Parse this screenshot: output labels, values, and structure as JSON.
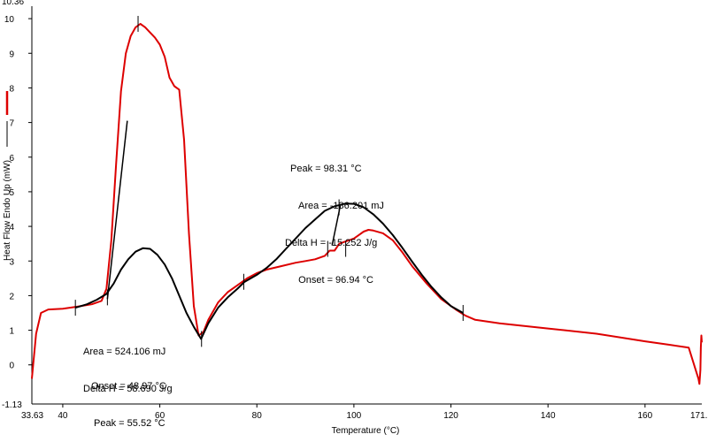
{
  "chart_data": {
    "type": "line",
    "xlabel": "Temperature (°C)",
    "ylabel": "Heat Flow Endo Up (mW)",
    "xlim": [
      33.63,
      171.7
    ],
    "ylim": [
      -1.13,
      10.36
    ],
    "x_ticks": [
      40,
      60,
      80,
      100,
      120,
      140,
      160
    ],
    "x_tick_labels": [
      "40",
      "60",
      "80",
      "100",
      "120",
      "140",
      "160"
    ],
    "x_min_label": "33.63",
    "x_max_label": "171.7",
    "y_ticks": [
      0,
      1,
      2,
      3,
      4,
      5,
      6,
      7,
      8,
      9,
      10
    ],
    "y_tick_labels": [
      "0",
      "1",
      "2",
      "3",
      "4",
      "5",
      "6",
      "7",
      "8",
      "9",
      "10"
    ],
    "y_min_label": "-1.13",
    "y_max_label": "10.36",
    "grid": false,
    "legend": [
      {
        "color": "#dd0000"
      },
      {
        "color": "#000000"
      }
    ],
    "series": [
      {
        "color": "#dd0000",
        "x": [
          33.63,
          34.5,
          35.5,
          37,
          40,
          43,
          46,
          48,
          49,
          50,
          51,
          52,
          53,
          54,
          55,
          56,
          57,
          58,
          59,
          60,
          61,
          62,
          63,
          64,
          65,
          66,
          67,
          68,
          69,
          70,
          72,
          74,
          76,
          78,
          80,
          82,
          85,
          88,
          90,
          92,
          94,
          95,
          96,
          97,
          98,
          99,
          100,
          101,
          102,
          103,
          104,
          106,
          108,
          110,
          112,
          115,
          118,
          121,
          123,
          125,
          130,
          140,
          150,
          160,
          165,
          169,
          171,
          171.2,
          171.4,
          171.5,
          171.6,
          171.7
        ],
        "y": [
          -0.4,
          0.9,
          1.5,
          1.6,
          1.62,
          1.68,
          1.75,
          1.85,
          2.2,
          3.6,
          5.8,
          7.9,
          9.0,
          9.5,
          9.75,
          9.85,
          9.75,
          9.6,
          9.45,
          9.25,
          8.9,
          8.3,
          8.05,
          7.95,
          6.5,
          3.8,
          1.7,
          0.85,
          0.95,
          1.3,
          1.8,
          2.1,
          2.3,
          2.5,
          2.65,
          2.75,
          2.85,
          2.95,
          3.0,
          3.05,
          3.15,
          3.3,
          3.3,
          3.5,
          3.55,
          3.6,
          3.65,
          3.75,
          3.85,
          3.9,
          3.88,
          3.8,
          3.6,
          3.25,
          2.85,
          2.35,
          1.9,
          1.6,
          1.42,
          1.3,
          1.2,
          1.05,
          0.9,
          0.68,
          0.58,
          0.5,
          -0.4,
          -0.55,
          -0.15,
          0.5,
          0.85,
          0.65
        ]
      },
      {
        "color": "#000000",
        "x": [
          42.6,
          45,
          47,
          49,
          50.5,
          52,
          53.5,
          55,
          56.5,
          58,
          59.5,
          61,
          62.5,
          64,
          65.5,
          67,
          68.5,
          70,
          72,
          74,
          76,
          77.5,
          80,
          82,
          84,
          86,
          88,
          90,
          92,
          94,
          96,
          98.3,
          100,
          102,
          104,
          106,
          108,
          110,
          112,
          114,
          116,
          118,
          120,
          122.5
        ],
        "y": [
          1.65,
          1.75,
          1.88,
          2.05,
          2.35,
          2.75,
          3.05,
          3.27,
          3.37,
          3.35,
          3.18,
          2.9,
          2.5,
          2.0,
          1.5,
          1.1,
          0.75,
          1.2,
          1.65,
          1.95,
          2.2,
          2.4,
          2.6,
          2.8,
          3.05,
          3.35,
          3.65,
          3.95,
          4.2,
          4.45,
          4.58,
          4.66,
          4.65,
          4.55,
          4.35,
          4.08,
          3.75,
          3.38,
          2.98,
          2.6,
          2.25,
          1.95,
          1.7,
          1.5
        ]
      }
    ],
    "tangents": [
      {
        "x": [
          49.2,
          53.3
        ],
        "y": [
          1.9,
          7.05
        ]
      },
      {
        "x": [
          95.5,
          97.2
        ],
        "y": [
          3.45,
          4.6
        ]
      }
    ],
    "markers": [
      {
        "x": 42.6,
        "y": 1.65
      },
      {
        "x": 49.2,
        "y": 1.95
      },
      {
        "x": 55.52,
        "y": 9.85
      },
      {
        "x": 68.6,
        "y": 0.75
      },
      {
        "x": 77.3,
        "y": 2.4
      },
      {
        "x": 94.6,
        "y": 3.35
      },
      {
        "x": 96.94,
        "y": 4.55
      },
      {
        "x": 98.31,
        "y": 3.35
      },
      {
        "x": 122.5,
        "y": 1.5
      }
    ],
    "annotations": [
      {
        "lines": [
          "Peak = 98.31 °C",
          "Area = -136.201 mJ",
          "Delta H = -15.252 J/g",
          "   Onset = 96.94 °C"
        ]
      },
      {
        "lines": [
          "Area = 524.106 mJ",
          "Delta H = 58.690 J/g"
        ]
      },
      {
        "lines": [
          "Onset = 48.97 °C",
          " Peak = 55.52 °C"
        ]
      }
    ]
  }
}
